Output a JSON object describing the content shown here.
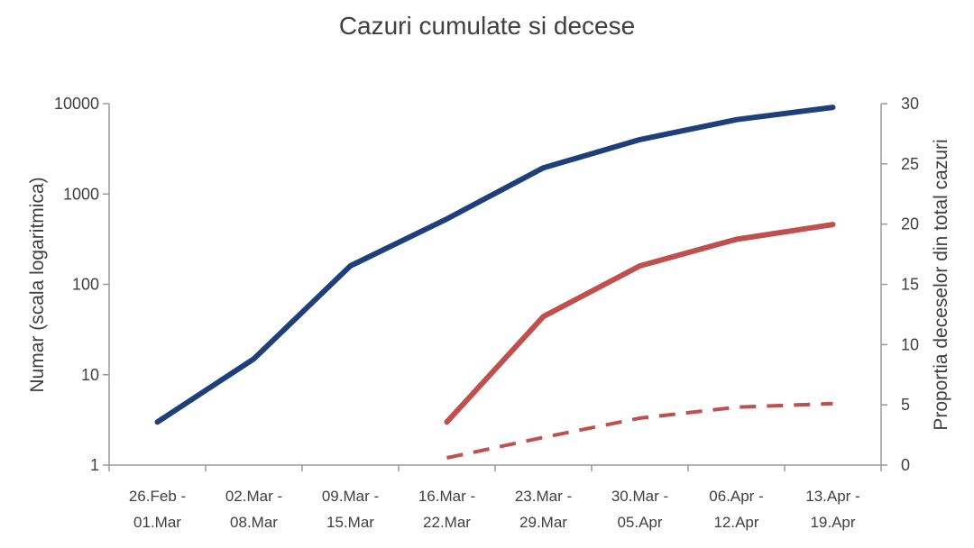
{
  "chart_data": {
    "type": "line",
    "title": "Cazuri cumulate si decese",
    "ylabel": "Numar (scala logaritmica)",
    "y2label": "Proportia deceselor din total cazuri",
    "yscale": "log",
    "ylim": [
      1,
      10000
    ],
    "y2lim": [
      0,
      30
    ],
    "yticks": [
      "1",
      "10",
      "100",
      "1000",
      "10000"
    ],
    "y2ticks": [
      "0",
      "5",
      "10",
      "15",
      "20",
      "25",
      "30"
    ],
    "categories": [
      [
        "26.Feb -",
        "01.Mar"
      ],
      [
        "02.Mar -",
        "08.Mar"
      ],
      [
        "09.Mar -",
        "15.Mar"
      ],
      [
        "16.Mar -",
        "22.Mar"
      ],
      [
        "23.Mar -",
        "29.Mar"
      ],
      [
        "30.Mar -",
        "05.Apr"
      ],
      [
        "06.Apr -",
        "12.Apr"
      ],
      [
        "13.Apr -",
        "19.Apr"
      ]
    ],
    "grid": false,
    "legend": "none",
    "series": [
      {
        "axis": "left",
        "style": "solid",
        "color": "#1f3f7a",
        "values": [
          3,
          15,
          160,
          530,
          1950,
          4000,
          6650,
          9100
        ]
      },
      {
        "axis": "left",
        "style": "solid",
        "color": "#c0504d",
        "values": [
          null,
          null,
          null,
          3,
          44,
          160,
          315,
          460
        ]
      },
      {
        "axis": "right",
        "style": "dashed",
        "color": "#c0504d",
        "values": [
          null,
          null,
          null,
          0.6,
          2.3,
          3.9,
          4.8,
          5.1
        ]
      }
    ]
  }
}
